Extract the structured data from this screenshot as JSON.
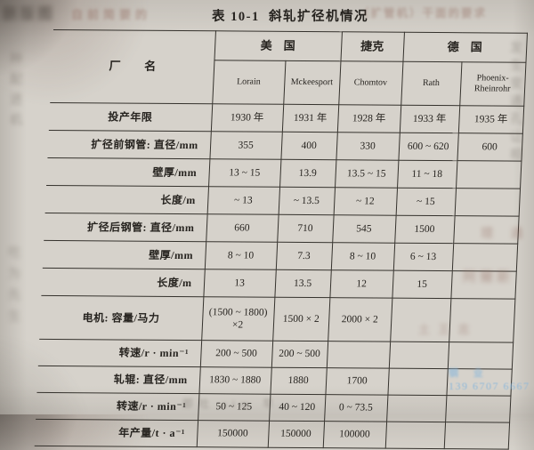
{
  "title": "表 10-1  斜轧扩径机情况",
  "table": {
    "corner_label": "厂 名",
    "country_groups": [
      {
        "label": "美　国",
        "span": 2
      },
      {
        "label": "捷克",
        "span": 1
      },
      {
        "label": "德　国",
        "span": 2
      }
    ],
    "plants": [
      "Lorain",
      "Mckeesport",
      "Chomtov",
      "Rath",
      "Phoenix-\nRheinrohr"
    ],
    "rows": [
      {
        "label": "投产年限",
        "align": "center",
        "size": "normal",
        "values": [
          "1930 年",
          "1931 年",
          "1928 年",
          "1933 年",
          "1935 年"
        ]
      },
      {
        "label": "扩径前钢管: 直径/mm",
        "align": "right",
        "size": "normal",
        "values": [
          "355",
          "400",
          "330",
          "600 ~ 620",
          "600"
        ]
      },
      {
        "label": "壁厚/mm",
        "align": "right",
        "size": "normal",
        "values": [
          "13 ~ 15",
          "13.9",
          "13.5 ~ 15",
          "11 ~ 18",
          ""
        ]
      },
      {
        "label": "长度/m",
        "align": "right",
        "size": "normal",
        "values": [
          "~ 13",
          "~ 13.5",
          "~ 12",
          "~ 15",
          ""
        ]
      },
      {
        "label": "扩径后钢管: 直径/mm",
        "align": "right",
        "size": "normal",
        "values": [
          "660",
          "710",
          "545",
          "1500",
          ""
        ]
      },
      {
        "label": "壁厚/mm",
        "align": "right",
        "size": "normal",
        "values": [
          "8 ~ 10",
          "7.3",
          "8 ~ 10",
          "6 ~ 13",
          ""
        ]
      },
      {
        "label": "长度/m",
        "align": "right",
        "size": "normal",
        "values": [
          "13",
          "13.5",
          "12",
          "15",
          ""
        ]
      },
      {
        "label": "电机: 容量/马力",
        "align": "center",
        "size": "tall",
        "values": [
          "(1500 ~ 1800)\n×2",
          "1500 × 2",
          "2000 × 2",
          "",
          ""
        ]
      },
      {
        "label": "转速/r · min⁻¹",
        "align": "right",
        "size": "short",
        "values": [
          "200 ~ 500",
          "200 ~ 500",
          "",
          "",
          ""
        ]
      },
      {
        "label": "轧辊: 直径/mm",
        "align": "right",
        "size": "short",
        "values": [
          "1830 ~ 1880",
          "1880",
          "1700",
          "",
          ""
        ]
      },
      {
        "label": "转速/r · min⁻¹",
        "align": "right",
        "size": "short",
        "values": [
          "50 ~ 125",
          "40 ~ 120",
          "0 ~ 73.5",
          "",
          ""
        ]
      },
      {
        "label": "年产量/t · a⁻¹",
        "align": "right",
        "size": "short",
        "values": [
          "150000",
          "150000",
          "100000",
          "",
          ""
        ]
      }
    ]
  },
  "watermark": {
    "line1": "钢 业",
    "line2": "139 6707 6667",
    "color": "#8bb7da"
  },
  "noise": [
    {
      "text": "删版图"
    },
    {
      "text": "自前简要的"
    },
    {
      "text": "（扩管机）干面的要求"
    },
    {
      "text": "发生变通孔让相"
    },
    {
      "text": "理 通"
    },
    {
      "text": "种配进机"
    },
    {
      "text": "吃为先生"
    },
    {
      "text": "即吐 sim 早."
    },
    {
      "text": "阿爾斯"
    },
    {
      "text": "土 王 志"
    }
  ]
}
